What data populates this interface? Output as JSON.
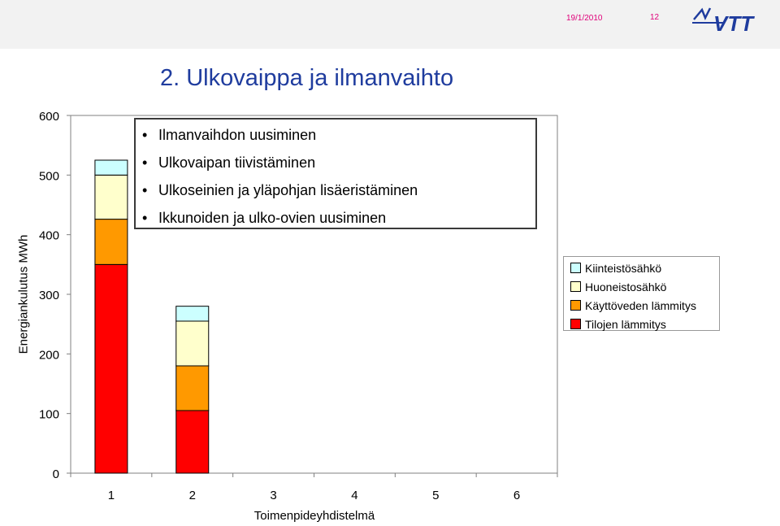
{
  "header": {
    "date": "19/1/2010",
    "page_number": "12",
    "logo_text": "VTT"
  },
  "slide_title": "2. Ulkovaippa ja ilmanvaihto",
  "bullets": [
    "Ilmanvaihdon uusiminen",
    "Ulkovaipan tiivistäminen",
    "Ulkoseinien ja yläpohjan lisäeristäminen",
    "Ikkunoiden ja ulko-ovien uusiminen"
  ],
  "chart_data": {
    "type": "bar",
    "stacked": true,
    "categories": [
      "1",
      "2",
      "3",
      "4",
      "5",
      "6"
    ],
    "series": [
      {
        "name": "Tilojen lämmitys",
        "color": "#ff0000",
        "values": [
          350,
          105,
          0,
          0,
          0,
          0
        ]
      },
      {
        "name": "Käyttöveden lämmitys",
        "color": "#ff9900",
        "values": [
          76,
          75,
          0,
          0,
          0,
          0
        ]
      },
      {
        "name": "Huoneistosähkö",
        "color": "#ffffcc",
        "values": [
          74,
          75,
          0,
          0,
          0,
          0
        ]
      },
      {
        "name": "Kiinteistösähkö",
        "color": "#ccffff",
        "values": [
          25,
          25,
          0,
          0,
          0,
          0
        ]
      }
    ],
    "legend_order": [
      "Kiinteistösähkö",
      "Huoneistosähkö",
      "Käyttöveden lämmitys",
      "Tilojen lämmitys"
    ],
    "xlabel": "Toimenpideyhdistelmä",
    "ylabel": "Energiankulutus MWh",
    "ylim": [
      0,
      600
    ],
    "yticks": [
      0,
      100,
      200,
      300,
      400,
      500,
      600
    ],
    "grid": false,
    "legend_position": "right"
  }
}
